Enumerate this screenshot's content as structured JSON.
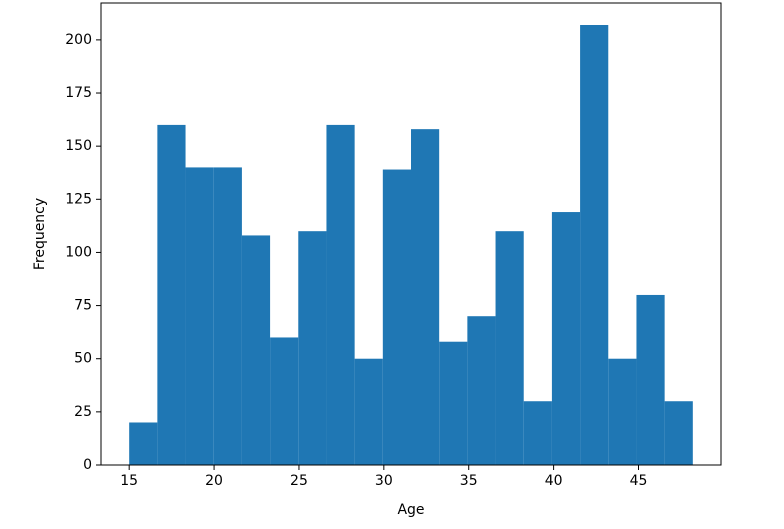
{
  "chart_data": {
    "type": "histogram",
    "xlabel": "Age",
    "ylabel": "Frequency",
    "color": "#1f77b4",
    "bins": [
      15,
      16.66,
      18.32,
      19.98,
      21.64,
      23.3,
      24.96,
      26.62,
      28.28,
      29.94,
      31.6,
      33.26,
      34.92,
      36.58,
      38.24,
      39.9,
      41.56,
      43.22,
      44.88,
      46.54,
      48.2
    ],
    "counts": [
      20,
      160,
      140,
      140,
      108,
      60,
      110,
      160,
      50,
      139,
      158,
      58,
      70,
      110,
      30,
      119,
      207,
      50,
      80,
      30
    ],
    "xlim": [
      13.34,
      49.86
    ],
    "ylim": [
      0,
      217.35
    ],
    "xticks": [
      15,
      20,
      25,
      30,
      35,
      40,
      45
    ],
    "yticks": [
      0,
      25,
      50,
      75,
      100,
      125,
      150,
      175,
      200
    ]
  }
}
